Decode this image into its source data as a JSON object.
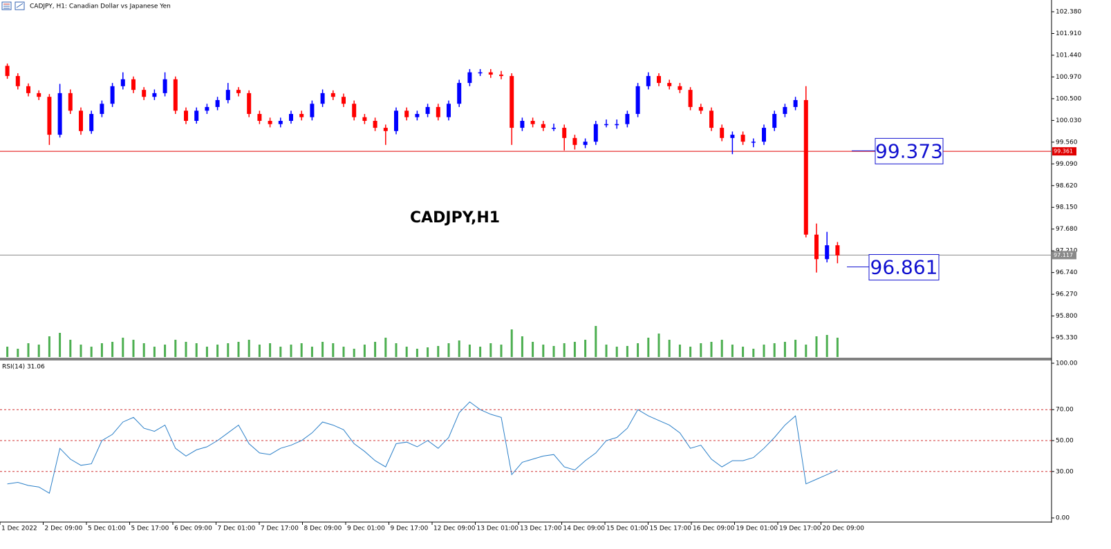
{
  "header": {
    "title": "CADJPY, H1:  Canadian Dollar vs Japanese Yen"
  },
  "chart_data": [
    {
      "type": "candlestick",
      "title": "CADJPY,H1",
      "x_labels": [
        "1 Dec 2022",
        "2 Dec 09:00",
        "5 Dec 01:00",
        "5 Dec 17:00",
        "6 Dec 09:00",
        "7 Dec 01:00",
        "7 Dec 17:00",
        "8 Dec 09:00",
        "9 Dec 01:00",
        "9 Dec 17:00",
        "12 Dec 09:00",
        "13 Dec 01:00",
        "13 Dec 17:00",
        "14 Dec 09:00",
        "15 Dec 01:00",
        "15 Dec 17:00",
        "16 Dec 09:00",
        "19 Dec 01:00",
        "19 Dec 17:00",
        "20 Dec 09:00"
      ],
      "ohlc": [
        [
          101.21,
          101.26,
          100.93,
          100.99
        ],
        [
          100.99,
          101.05,
          100.7,
          100.77
        ],
        [
          100.77,
          100.83,
          100.55,
          100.62
        ],
        [
          100.62,
          100.68,
          100.47,
          100.54
        ],
        [
          100.54,
          100.6,
          99.5,
          99.72
        ],
        [
          99.72,
          100.82,
          99.66,
          100.62
        ],
        [
          100.62,
          100.7,
          100.17,
          100.24
        ],
        [
          100.24,
          100.31,
          99.72,
          99.8
        ],
        [
          99.8,
          100.24,
          99.74,
          100.17
        ],
        [
          100.17,
          100.46,
          100.1,
          100.39
        ],
        [
          100.39,
          100.84,
          100.32,
          100.77
        ],
        [
          100.77,
          101.07,
          100.7,
          100.92
        ],
        [
          100.92,
          100.98,
          100.62,
          100.69
        ],
        [
          100.69,
          100.75,
          100.47,
          100.54
        ],
        [
          100.54,
          100.7,
          100.47,
          100.62
        ],
        [
          100.62,
          101.07,
          100.55,
          100.92
        ],
        [
          100.92,
          100.98,
          100.17,
          100.24
        ],
        [
          100.24,
          100.31,
          99.95,
          100.02
        ],
        [
          100.02,
          100.31,
          99.96,
          100.24
        ],
        [
          100.24,
          100.39,
          100.17,
          100.32
        ],
        [
          100.32,
          100.54,
          100.25,
          100.47
        ],
        [
          100.47,
          100.84,
          100.4,
          100.69
        ],
        [
          100.69,
          100.75,
          100.55,
          100.62
        ],
        [
          100.62,
          100.68,
          100.1,
          100.17
        ],
        [
          100.17,
          100.24,
          99.95,
          100.02
        ],
        [
          100.02,
          100.09,
          99.88,
          99.95
        ],
        [
          99.95,
          100.09,
          99.88,
          100.02
        ],
        [
          100.02,
          100.24,
          99.96,
          100.17
        ],
        [
          100.17,
          100.24,
          100.03,
          100.1
        ],
        [
          100.1,
          100.46,
          100.03,
          100.39
        ],
        [
          100.39,
          100.7,
          100.32,
          100.62
        ],
        [
          100.62,
          100.68,
          100.47,
          100.54
        ],
        [
          100.54,
          100.61,
          100.32,
          100.39
        ],
        [
          100.39,
          100.46,
          100.03,
          100.1
        ],
        [
          100.1,
          100.17,
          99.95,
          100.02
        ],
        [
          100.02,
          100.09,
          99.8,
          99.87
        ],
        [
          99.87,
          99.94,
          99.5,
          99.8
        ],
        [
          99.8,
          100.31,
          99.73,
          100.24
        ],
        [
          100.24,
          100.31,
          100.03,
          100.1
        ],
        [
          100.1,
          100.24,
          100.03,
          100.17
        ],
        [
          100.17,
          100.39,
          100.1,
          100.32
        ],
        [
          100.32,
          100.39,
          100.03,
          100.1
        ],
        [
          100.1,
          100.46,
          100.03,
          100.39
        ],
        [
          100.39,
          100.91,
          100.32,
          100.84
        ],
        [
          100.84,
          101.14,
          100.77,
          101.07
        ],
        [
          101.07,
          101.14,
          100.99,
          101.07
        ],
        [
          101.07,
          101.14,
          100.95,
          101.02
        ],
        [
          101.02,
          101.1,
          100.92,
          100.99
        ],
        [
          100.99,
          101.05,
          99.5,
          99.87
        ],
        [
          99.87,
          100.09,
          99.8,
          100.02
        ],
        [
          100.02,
          100.09,
          99.88,
          99.95
        ],
        [
          99.95,
          100.02,
          99.8,
          99.87
        ],
        [
          99.87,
          99.96,
          99.8,
          99.87
        ],
        [
          99.87,
          99.94,
          99.38,
          99.65
        ],
        [
          99.65,
          99.72,
          99.4,
          99.5
        ],
        [
          99.5,
          99.64,
          99.43,
          99.57
        ],
        [
          99.57,
          100.02,
          99.5,
          99.95
        ],
        [
          99.95,
          100.05,
          99.88,
          99.95
        ],
        [
          99.95,
          100.05,
          99.85,
          99.95
        ],
        [
          99.95,
          100.24,
          99.88,
          100.17
        ],
        [
          100.17,
          100.84,
          100.1,
          100.77
        ],
        [
          100.77,
          101.07,
          100.7,
          100.99
        ],
        [
          100.99,
          101.05,
          100.77,
          100.84
        ],
        [
          100.84,
          100.91,
          100.7,
          100.77
        ],
        [
          100.77,
          100.84,
          100.62,
          100.69
        ],
        [
          100.69,
          100.75,
          100.25,
          100.32
        ],
        [
          100.32,
          100.39,
          100.17,
          100.24
        ],
        [
          100.24,
          100.31,
          99.8,
          99.87
        ],
        [
          99.87,
          99.94,
          99.58,
          99.65
        ],
        [
          99.65,
          99.79,
          99.3,
          99.72
        ],
        [
          99.72,
          99.79,
          99.5,
          99.57
        ],
        [
          99.57,
          99.64,
          99.45,
          99.57
        ],
        [
          99.57,
          99.94,
          99.5,
          99.87
        ],
        [
          99.87,
          100.24,
          99.8,
          100.17
        ],
        [
          100.17,
          100.39,
          100.1,
          100.32
        ],
        [
          100.32,
          100.54,
          100.25,
          100.47
        ],
        [
          100.47,
          100.77,
          97.5,
          97.56
        ],
        [
          97.56,
          97.8,
          96.74,
          97.03
        ],
        [
          97.03,
          97.62,
          96.96,
          97.33
        ],
        [
          97.33,
          97.4,
          96.94,
          97.11
        ]
      ],
      "volumes": [
        15,
        12,
        20,
        18,
        30,
        35,
        25,
        18,
        15,
        20,
        22,
        28,
        25,
        20,
        15,
        18,
        25,
        22,
        20,
        15,
        18,
        20,
        22,
        25,
        18,
        20,
        15,
        18,
        20,
        15,
        22,
        20,
        15,
        12,
        18,
        22,
        28,
        20,
        15,
        12,
        14,
        16,
        20,
        24,
        18,
        15,
        20,
        18,
        40,
        30,
        22,
        18,
        16,
        20,
        22,
        25,
        45,
        18,
        15,
        16,
        20,
        28,
        34,
        25,
        18,
        15,
        20,
        22,
        25,
        18,
        15,
        12,
        18,
        20,
        22,
        25,
        18,
        30,
        32,
        28
      ],
      "up_color": "#0000ff",
      "down_color": "#ff0000",
      "volume_color": "#4caf50",
      "ylim": [
        94.883,
        102.634
      ],
      "yticks": [
        {
          "value": 102.38,
          "label": "102.380"
        },
        {
          "value": 101.91,
          "label": "101.910"
        },
        {
          "value": 101.44,
          "label": "101.440"
        },
        {
          "value": 100.97,
          "label": "100.970"
        },
        {
          "value": 100.5,
          "label": "100.500"
        },
        {
          "value": 100.03,
          "label": "100.030"
        },
        {
          "value": 99.56,
          "label": "99.560"
        },
        {
          "value": 99.09,
          "label": "99.090"
        },
        {
          "value": 98.62,
          "label": "98.620"
        },
        {
          "value": 98.15,
          "label": "98.150"
        },
        {
          "value": 97.68,
          "label": "97.680"
        },
        {
          "value": 97.21,
          "label": "97.210"
        },
        {
          "value": 96.74,
          "label": "96.740"
        },
        {
          "value": 96.27,
          "label": "96.270"
        },
        {
          "value": 95.8,
          "label": "95.800"
        },
        {
          "value": 95.33,
          "label": "95.330"
        }
      ],
      "hlines": [
        {
          "value": 99.361,
          "color": "#e00000"
        },
        {
          "value": 97.117,
          "color": "#8a8a8a"
        }
      ],
      "annotations": [
        {
          "value": 99.373
        },
        {
          "value": 96.861
        }
      ]
    },
    {
      "type": "line",
      "title": "RSI(14) 31.06",
      "values": [
        22,
        23,
        21,
        20,
        16,
        45,
        38,
        34,
        35,
        50,
        54,
        62,
        65,
        58,
        56,
        60,
        45,
        40,
        44,
        46,
        50,
        55,
        60,
        48,
        42,
        41,
        45,
        47,
        50,
        55,
        62,
        60,
        57,
        48,
        43,
        37,
        33,
        48,
        49,
        46,
        50,
        45,
        52,
        68,
        75,
        70,
        67,
        65,
        28,
        36,
        38,
        40,
        41,
        33,
        31,
        37,
        42,
        50,
        52,
        58,
        70,
        66,
        63,
        60,
        55,
        45,
        47,
        38,
        33,
        37,
        37,
        39,
        45,
        52,
        60,
        66,
        22,
        25,
        28,
        31.06
      ],
      "color": "#2a7fc8",
      "ylim": [
        0,
        100
      ],
      "yticks": [
        {
          "value": 100,
          "label": "100.00"
        },
        {
          "value": 70,
          "label": "70.00"
        },
        {
          "value": 50,
          "label": "50.00"
        },
        {
          "value": 30,
          "label": "30.00"
        },
        {
          "value": 0,
          "label": "0.00"
        }
      ],
      "levels": [
        70,
        50,
        30
      ],
      "level_color": "#d03030"
    }
  ]
}
